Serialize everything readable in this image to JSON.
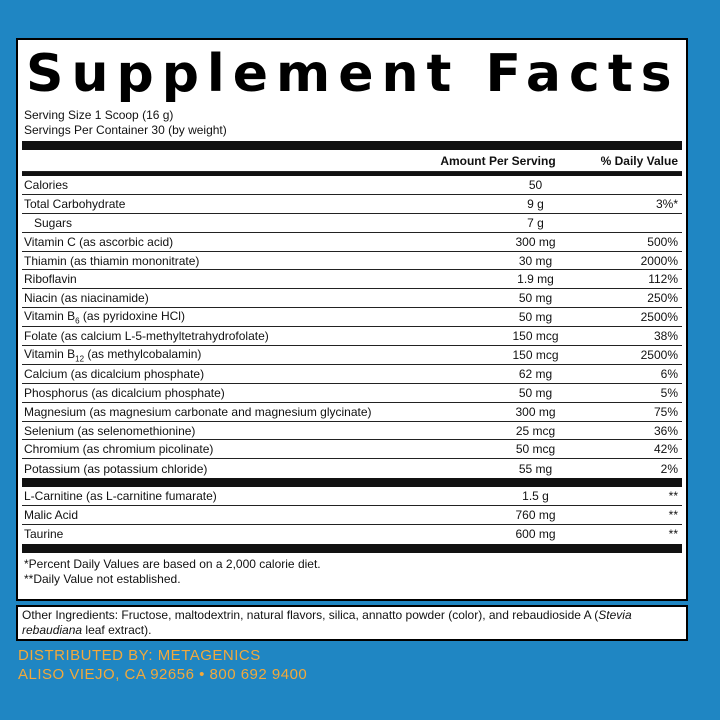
{
  "title": "Supplement Facts",
  "serving_size": "Serving Size 1 Scoop (16 g)",
  "servings_per_container": "Servings Per Container 30 (by weight)",
  "headers": {
    "amount": "Amount Per Serving",
    "dv": "% Daily Value"
  },
  "nutrients": [
    {
      "name": "Calories",
      "amount": "50",
      "dv": ""
    },
    {
      "name": "Total Carbohydrate",
      "amount": "9 g",
      "dv": "3%*"
    },
    {
      "name": "Sugars",
      "amount": "7 g",
      "dv": ""
    },
    {
      "name": "Vitamin C (as ascorbic acid)",
      "amount": "300 mg",
      "dv": "500%"
    },
    {
      "name": "Thiamin (as thiamin mononitrate)",
      "amount": "30 mg",
      "dv": "2000%"
    },
    {
      "name": "Riboflavin",
      "amount": "1.9 mg",
      "dv": "112%"
    },
    {
      "name": "Niacin (as niacinamide)",
      "amount": "50 mg",
      "dv": "250%"
    },
    {
      "name_pre": "Vitamin B",
      "name_sub": "6",
      "name_post": " (as pyridoxine HCl)",
      "amount": "50 mg",
      "dv": "2500%"
    },
    {
      "name": "Folate (as calcium L-5-methyltetrahydrofolate)",
      "amount": "150 mcg",
      "dv": "38%"
    },
    {
      "name_pre": "Vitamin B",
      "name_sub": "12",
      "name_post": " (as methylcobalamin)",
      "amount": "150 mcg",
      "dv": "2500%"
    },
    {
      "name": "Calcium (as dicalcium phosphate)",
      "amount": "62 mg",
      "dv": "6%"
    },
    {
      "name": "Phosphorus (as dicalcium phosphate)",
      "amount": "50 mg",
      "dv": "5%"
    },
    {
      "name": "Magnesium (as magnesium carbonate and magnesium glycinate)",
      "amount": "300 mg",
      "dv": "75%"
    },
    {
      "name": "Selenium (as selenomethionine)",
      "amount": "25 mcg",
      "dv": "36%"
    },
    {
      "name": "Chromium (as chromium picolinate)",
      "amount": "50 mcg",
      "dv": "42%"
    },
    {
      "name": "Potassium (as potassium chloride)",
      "amount": "55 mg",
      "dv": "2%"
    }
  ],
  "other_nutrients": [
    {
      "name": "L-Carnitine (as L-carnitine fumarate)",
      "amount": "1.5 g",
      "dv": "**"
    },
    {
      "name": "Malic Acid",
      "amount": "760 mg",
      "dv": "**"
    },
    {
      "name": "Taurine",
      "amount": "600 mg",
      "dv": "**"
    }
  ],
  "footnotes": [
    "*Percent Daily Values are based on a 2,000 calorie diet.",
    "**Daily Value not established."
  ],
  "other_ingredients": {
    "pre": "Other Ingredients: Fructose, maltodextrin, natural flavors, silica, annatto powder (color), and rebaudioside A (",
    "italic": "Stevia rebaudiana",
    "post": " leaf extract)."
  },
  "distributor": {
    "line1": "DISTRIBUTED BY: METAGENICS",
    "line2": "ALISO VIEJO, CA 92656 • 800 692 9400"
  },
  "colors": {
    "background": "#1f86c3",
    "distributor_text": "#f2a93b"
  }
}
